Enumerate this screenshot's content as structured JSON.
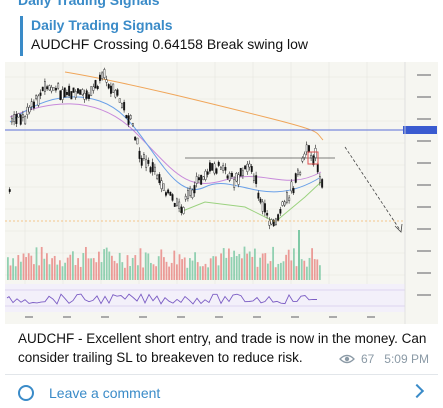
{
  "header": {
    "channel_name": "Daily Trading Signals"
  },
  "reply": {
    "author": "Daily Trading Signals",
    "text": "AUDCHF Crossing 0.64158 Break swing low"
  },
  "message": {
    "caption": "AUDCHF - Excellent short entry, and trade is now in the money. Can consider trailing SL to breakeven to reduce risk.",
    "views": "67",
    "time": "5:09 PM"
  },
  "comment": {
    "label": "Leave a comment"
  },
  "icons": {
    "views": "eye-icon",
    "comment": "comment-circle-icon",
    "chevron": "chevron-right-icon"
  },
  "colors": {
    "accent": "#3a8bc8",
    "meta": "#8b9aa6"
  }
}
